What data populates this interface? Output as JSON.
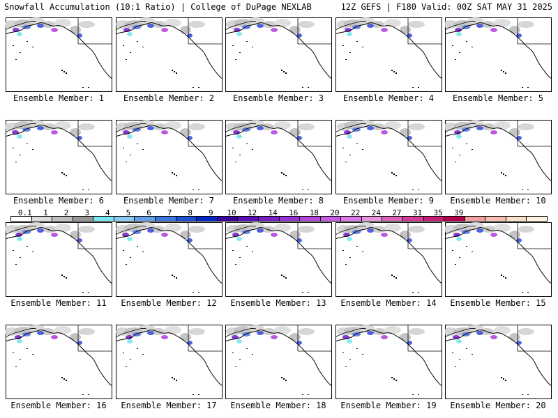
{
  "header": {
    "left_title": "Snowfall Accumulation (10:1 Ratio) | College of DuPage NEXLAB",
    "right_title": "12Z GEFS | F180 Valid: 00Z SAT MAY 31 2025"
  },
  "panels": [
    {
      "member": 1,
      "caption": "Ensemble Member: 1"
    },
    {
      "member": 2,
      "caption": "Ensemble Member: 2"
    },
    {
      "member": 3,
      "caption": "Ensemble Member: 3"
    },
    {
      "member": 4,
      "caption": "Ensemble Member: 4"
    },
    {
      "member": 5,
      "caption": "Ensemble Member: 5"
    },
    {
      "member": 6,
      "caption": "Ensemble Member: 6"
    },
    {
      "member": 7,
      "caption": "Ensemble Member: 7"
    },
    {
      "member": 8,
      "caption": "Ensemble Member: 8"
    },
    {
      "member": 9,
      "caption": "Ensemble Member: 9"
    },
    {
      "member": 10,
      "caption": "Ensemble Member: 10"
    },
    {
      "member": 11,
      "caption": "Ensemble Member: 11"
    },
    {
      "member": 12,
      "caption": "Ensemble Member: 12"
    },
    {
      "member": 13,
      "caption": "Ensemble Member: 13"
    },
    {
      "member": 14,
      "caption": "Ensemble Member: 14"
    },
    {
      "member": 15,
      "caption": "Ensemble Member: 15"
    },
    {
      "member": 16,
      "caption": "Ensemble Member: 16"
    },
    {
      "member": 17,
      "caption": "Ensemble Member: 17"
    },
    {
      "member": 18,
      "caption": "Ensemble Member: 18"
    },
    {
      "member": 19,
      "caption": "Ensemble Member: 19"
    },
    {
      "member": 20,
      "caption": "Ensemble Member: 20"
    }
  ],
  "legend": {
    "labels": [
      "0.1",
      "1",
      "2",
      "3",
      "4",
      "5",
      "6",
      "7",
      "8",
      "9",
      "10",
      "12",
      "14",
      "16",
      "18",
      "20",
      "22",
      "24",
      "27",
      "31",
      "35",
      "39"
    ],
    "colors": [
      "#ffffff",
      "#dcdcdc",
      "#bebebe",
      "#969696",
      "#78e6f0",
      "#8cc8f0",
      "#64a0e6",
      "#3c78dc",
      "#1e50d2",
      "#0028c8",
      "#3c00a0",
      "#5a10b4",
      "#7820c8",
      "#9632d2",
      "#b446dc",
      "#c85ae6",
      "#dc78e6",
      "#e696dc",
      "#dc64b4",
      "#d23c96",
      "#c81e78",
      "#b40050",
      "#f0a0a0",
      "#f5c0b0",
      "#fae0c8",
      "#fff0e0"
    ]
  }
}
